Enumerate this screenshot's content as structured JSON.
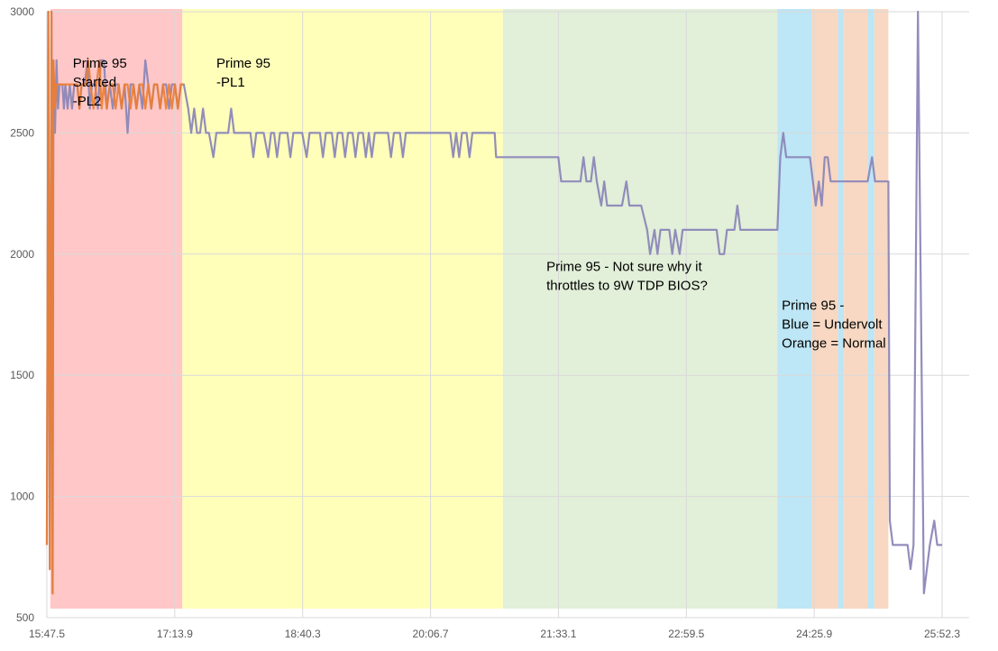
{
  "chart_data": {
    "type": "line",
    "title": "",
    "xlabel": "",
    "ylabel": "",
    "ylim": [
      500,
      3000
    ],
    "yticks": [
      500,
      1000,
      1500,
      2000,
      2500,
      3000
    ],
    "xticks": [
      "15:47.5",
      "17:13.9",
      "18:40.3",
      "20:06.7",
      "21:33.1",
      "22:59.5",
      "24:25.9",
      "25:52.3"
    ],
    "grid": true,
    "legend": "none",
    "colors": {
      "series_a": "#8c87b8",
      "series_b": "#ed7d31",
      "overlap": "#c8a24a"
    },
    "regions": [
      {
        "x_range": [
          "15:49.8",
          "17:19.0"
        ],
        "color": "#ffc7c7"
      },
      {
        "x_range": [
          "17:19.0",
          "20:55.6"
        ],
        "color": "#ffffba"
      },
      {
        "x_range": [
          "20:55.6",
          "24:01.0"
        ],
        "color": "#e2efd9"
      },
      {
        "x_range": [
          "24:01.0",
          "24:24.0"
        ],
        "color": "#bde6f6"
      },
      {
        "x_range": [
          "24:24.0",
          "24:42.0"
        ],
        "color": "#f8d8c2"
      },
      {
        "x_range": [
          "24:42.0",
          "24:46.0"
        ],
        "color": "#bde6f6"
      },
      {
        "x_range": [
          "24:46.0",
          "25:02.0"
        ],
        "color": "#f8d8c2"
      },
      {
        "x_range": [
          "25:02.0",
          "25:06.5"
        ],
        "color": "#bde6f6"
      },
      {
        "x_range": [
          "25:06.5",
          "25:16.0"
        ],
        "color": "#f8d8c2"
      }
    ],
    "annotations": [
      {
        "lines": [
          "Prime 95",
          "Started",
          "-PL2"
        ],
        "x": "16:05",
        "y": 2770
      },
      {
        "lines": [
          "Prime 95",
          "-PL1"
        ],
        "x": "17:42",
        "y": 2770
      },
      {
        "lines": [
          "Prime 95 - Not sure why it",
          "throttles to 9W TDP BIOS?"
        ],
        "x": "21:25",
        "y": 1930
      },
      {
        "lines": [
          "Prime 95 -",
          "Blue = Undervolt",
          "Orange = Normal"
        ],
        "x": "24:04",
        "y": 1770
      }
    ],
    "series": [
      {
        "color": "#8c87b8",
        "points": [
          [
            "15:47.5",
            800
          ],
          [
            "15:48.5",
            3000
          ],
          [
            "15:49.5",
            700
          ],
          [
            "15:50.6",
            3000
          ],
          [
            "15:51.4",
            600
          ],
          [
            "15:51.9",
            2800
          ],
          [
            "15:53.0",
            2500
          ],
          [
            "15:54.0",
            2800
          ],
          [
            "15:55.0",
            2600
          ],
          [
            "15:56.0",
            2700
          ],
          [
            "15:58.0",
            2700
          ],
          [
            "15:59.0",
            2600
          ],
          [
            "16:00.0",
            2700
          ],
          [
            "16:01.5",
            2600
          ],
          [
            "16:03.0",
            2700
          ],
          [
            "16:04.5",
            2600
          ],
          [
            "16:06.0",
            2700
          ],
          [
            "16:08.0",
            2700
          ],
          [
            "16:09.5",
            2600
          ],
          [
            "16:11.0",
            2700
          ],
          [
            "16:13.0",
            2700
          ],
          [
            "16:15.0",
            2800
          ],
          [
            "16:16.5",
            2600
          ],
          [
            "16:18.0",
            2700
          ],
          [
            "16:20.0",
            2700
          ],
          [
            "16:22.0",
            2600
          ],
          [
            "16:24.0",
            2800
          ],
          [
            "16:26.0",
            2800
          ],
          [
            "16:28.0",
            2600
          ],
          [
            "16:30.0",
            2700
          ],
          [
            "16:32.0",
            2600
          ],
          [
            "16:34.0",
            2700
          ],
          [
            "16:36.0",
            2700
          ],
          [
            "16:38.0",
            2600
          ],
          [
            "16:40.0",
            2700
          ],
          [
            "16:42.0",
            2500
          ],
          [
            "16:44.0",
            2700
          ],
          [
            "16:46.0",
            2700
          ],
          [
            "16:48.0",
            2600
          ],
          [
            "16:50.0",
            2700
          ],
          [
            "16:52.0",
            2600
          ],
          [
            "16:54.0",
            2800
          ],
          [
            "16:56.0",
            2700
          ],
          [
            "16:58.0",
            2600
          ],
          [
            "17:00.0",
            2700
          ],
          [
            "17:02.0",
            2700
          ],
          [
            "17:04.0",
            2600
          ],
          [
            "17:06.0",
            2700
          ],
          [
            "17:08.0",
            2700
          ],
          [
            "17:10.0",
            2600
          ],
          [
            "17:12.0",
            2700
          ],
          [
            "17:14.0",
            2700
          ],
          [
            "17:16.0",
            2600
          ],
          [
            "17:18.0",
            2700
          ],
          [
            "17:20.0",
            2700
          ],
          [
            "17:23.0",
            2600
          ],
          [
            "17:25.0",
            2500
          ],
          [
            "17:27.0",
            2600
          ],
          [
            "17:29.0",
            2500
          ],
          [
            "17:31.0",
            2500
          ],
          [
            "17:33.0",
            2600
          ],
          [
            "17:35.0",
            2500
          ],
          [
            "17:37.0",
            2500
          ],
          [
            "17:40.0",
            2400
          ],
          [
            "17:42.0",
            2500
          ],
          [
            "17:50.0",
            2500
          ],
          [
            "17:52.0",
            2600
          ],
          [
            "17:54.0",
            2500
          ],
          [
            "18:00.0",
            2500
          ],
          [
            "18:05.0",
            2500
          ],
          [
            "18:07.0",
            2400
          ],
          [
            "18:09.0",
            2500
          ],
          [
            "18:14.0",
            2500
          ],
          [
            "18:17.0",
            2400
          ],
          [
            "18:19.0",
            2500
          ],
          [
            "18:21.0",
            2500
          ],
          [
            "18:23.0",
            2400
          ],
          [
            "18:25.0",
            2500
          ],
          [
            "18:30.0",
            2500
          ],
          [
            "18:32.0",
            2400
          ],
          [
            "18:34.0",
            2500
          ],
          [
            "18:40.0",
            2500
          ],
          [
            "18:43.0",
            2400
          ],
          [
            "18:45.0",
            2500
          ],
          [
            "18:52.0",
            2500
          ],
          [
            "18:54.0",
            2400
          ],
          [
            "18:56.0",
            2500
          ],
          [
            "19:00.0",
            2500
          ],
          [
            "19:02.0",
            2400
          ],
          [
            "19:04.0",
            2500
          ],
          [
            "19:07.0",
            2500
          ],
          [
            "19:09.0",
            2400
          ],
          [
            "19:11.0",
            2500
          ],
          [
            "19:14.0",
            2500
          ],
          [
            "19:16.0",
            2400
          ],
          [
            "19:18.0",
            2500
          ],
          [
            "19:21.0",
            2500
          ],
          [
            "19:23.0",
            2400
          ],
          [
            "19:25.0",
            2500
          ],
          [
            "19:27.0",
            2400
          ],
          [
            "19:29.0",
            2500
          ],
          [
            "19:38.0",
            2500
          ],
          [
            "19:40.0",
            2400
          ],
          [
            "19:42.0",
            2500
          ],
          [
            "19:46.0",
            2500
          ],
          [
            "19:48.0",
            2400
          ],
          [
            "19:50.0",
            2500
          ],
          [
            "20:20.0",
            2500
          ],
          [
            "20:22.0",
            2400
          ],
          [
            "20:24.0",
            2500
          ],
          [
            "20:26.0",
            2400
          ],
          [
            "20:28.0",
            2500
          ],
          [
            "20:31.0",
            2500
          ],
          [
            "20:33.0",
            2400
          ],
          [
            "20:35.0",
            2500
          ],
          [
            "20:50.0",
            2500
          ],
          [
            "20:51.0",
            2400
          ],
          [
            "21:00.0",
            2400
          ],
          [
            "21:03.0",
            2400
          ],
          [
            "21:05.0",
            2400
          ],
          [
            "21:10.0",
            2400
          ],
          [
            "21:33.0",
            2400
          ],
          [
            "21:35.0",
            2300
          ],
          [
            "21:48.0",
            2300
          ],
          [
            "21:50.0",
            2400
          ],
          [
            "21:52.0",
            2300
          ],
          [
            "21:55.0",
            2300
          ],
          [
            "21:57.0",
            2400
          ],
          [
            "21:59.0",
            2300
          ],
          [
            "22:02.0",
            2200
          ],
          [
            "22:04.0",
            2300
          ],
          [
            "22:06.0",
            2200
          ],
          [
            "22:16.0",
            2200
          ],
          [
            "22:19.0",
            2300
          ],
          [
            "22:21.0",
            2200
          ],
          [
            "22:29.0",
            2200
          ],
          [
            "22:33.0",
            2100
          ],
          [
            "22:35.0",
            2000
          ],
          [
            "22:38.0",
            2100
          ],
          [
            "22:40.0",
            2000
          ],
          [
            "22:42.0",
            2100
          ],
          [
            "22:48.0",
            2100
          ],
          [
            "22:50.0",
            2000
          ],
          [
            "22:52.0",
            2100
          ],
          [
            "22:55.0",
            2000
          ],
          [
            "22:57.0",
            2100
          ],
          [
            "23:20.0",
            2100
          ],
          [
            "23:22.0",
            2000
          ],
          [
            "23:25.0",
            2000
          ],
          [
            "23:27.0",
            2100
          ],
          [
            "23:32.0",
            2100
          ],
          [
            "23:34.0",
            2200
          ],
          [
            "23:36.0",
            2100
          ],
          [
            "24:00.0",
            2100
          ],
          [
            "24:01.0",
            2100
          ],
          [
            "24:03.0",
            2400
          ],
          [
            "24:05.0",
            2500
          ],
          [
            "24:07.0",
            2400
          ],
          [
            "24:23.0",
            2400
          ],
          [
            "24:25.0",
            2300
          ],
          [
            "24:27.0",
            2200
          ],
          [
            "24:29.0",
            2300
          ],
          [
            "24:31.0",
            2200
          ],
          [
            "24:33.0",
            2400
          ],
          [
            "24:35.0",
            2400
          ],
          [
            "24:37.0",
            2300
          ],
          [
            "24:39.0",
            2300
          ],
          [
            "24:45.0",
            2300
          ],
          [
            "24:58.0",
            2300
          ],
          [
            "25:02.0",
            2300
          ],
          [
            "25:05.0",
            2400
          ],
          [
            "25:07.0",
            2300
          ],
          [
            "25:16.0",
            2300
          ],
          [
            "25:17.0",
            900
          ],
          [
            "25:19.0",
            800
          ],
          [
            "25:29.0",
            800
          ],
          [
            "25:31.0",
            700
          ],
          [
            "25:33.0",
            800
          ],
          [
            "25:36.0",
            3000
          ],
          [
            "25:40.0",
            600
          ],
          [
            "25:44.0",
            800
          ],
          [
            "25:47.0",
            900
          ],
          [
            "25:49.0",
            800
          ],
          [
            "25:52.3",
            800
          ]
        ]
      },
      {
        "color": "#ed7d31",
        "points": [
          [
            "15:47.5",
            800
          ],
          [
            "15:48.5",
            3000
          ],
          [
            "15:49.5",
            700
          ],
          [
            "15:50.6",
            3000
          ],
          [
            "15:51.4",
            600
          ],
          [
            "15:51.9",
            2800
          ],
          [
            "15:53.0",
            2600
          ],
          [
            "15:54.0",
            2700
          ],
          [
            "16:08.0",
            2700
          ],
          [
            "16:09.5",
            2600
          ],
          [
            "16:11.0",
            2700
          ],
          [
            "16:14.0",
            2700
          ],
          [
            "16:15.5",
            2800
          ],
          [
            "16:17.0",
            2700
          ],
          [
            "16:19.0",
            2600
          ],
          [
            "16:21.0",
            2700
          ],
          [
            "16:23.0",
            2800
          ],
          [
            "16:24.5",
            2600
          ],
          [
            "16:26.0",
            2700
          ],
          [
            "16:28.0",
            2600
          ],
          [
            "16:30.0",
            2700
          ],
          [
            "16:32.0",
            2700
          ],
          [
            "16:34.0",
            2600
          ],
          [
            "16:36.0",
            2700
          ],
          [
            "16:38.0",
            2600
          ],
          [
            "16:40.0",
            2700
          ],
          [
            "16:42.0",
            2700
          ],
          [
            "16:44.0",
            2600
          ],
          [
            "16:46.0",
            2700
          ],
          [
            "16:48.0",
            2600
          ],
          [
            "16:50.0",
            2700
          ],
          [
            "16:52.0",
            2700
          ],
          [
            "16:54.0",
            2600
          ],
          [
            "16:56.0",
            2700
          ],
          [
            "16:58.0",
            2600
          ],
          [
            "17:00.0",
            2700
          ],
          [
            "17:02.0",
            2700
          ],
          [
            "17:04.0",
            2600
          ],
          [
            "17:06.0",
            2700
          ],
          [
            "17:08.0",
            2600
          ],
          [
            "17:10.0",
            2700
          ],
          [
            "17:12.0",
            2600
          ],
          [
            "17:14.0",
            2700
          ],
          [
            "17:16.0",
            2600
          ],
          [
            "17:18.0",
            2700
          ],
          [
            "17:20.0",
            2700
          ]
        ]
      }
    ]
  }
}
